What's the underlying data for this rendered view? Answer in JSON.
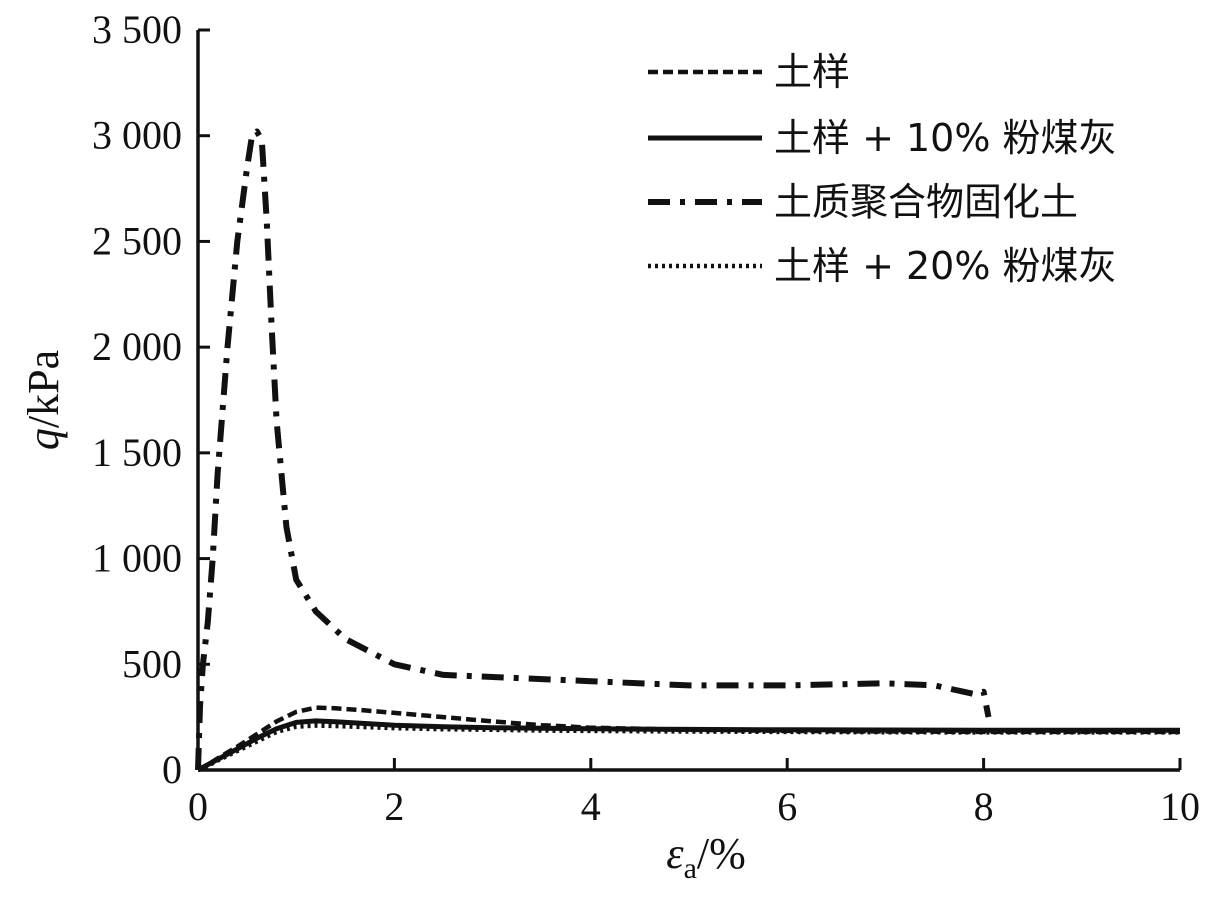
{
  "chart_data": {
    "type": "line",
    "xlabel_symbol": "ε",
    "xlabel_subscript": "a",
    "xlabel_unit": "/%",
    "ylabel_symbol": "q",
    "ylabel_unit": "/kPa",
    "xlim": [
      0,
      10
    ],
    "ylim": [
      0,
      3500
    ],
    "x_ticks": [
      {
        "value": 0,
        "label": "0"
      },
      {
        "value": 2,
        "label": "2"
      },
      {
        "value": 4,
        "label": "4"
      },
      {
        "value": 6,
        "label": "6"
      },
      {
        "value": 8,
        "label": "8"
      },
      {
        "value": 10,
        "label": "10"
      }
    ],
    "y_ticks": [
      {
        "value": 0,
        "label": "0"
      },
      {
        "value": 500,
        "label": "500"
      },
      {
        "value": 1000,
        "label": "1 000"
      },
      {
        "value": 1500,
        "label": "1 500"
      },
      {
        "value": 2000,
        "label": "2 000"
      },
      {
        "value": 2500,
        "label": "2 500"
      },
      {
        "value": 3000,
        "label": "3 000"
      },
      {
        "value": 3500,
        "label": "3 500"
      }
    ],
    "grid": false,
    "legend_position": "top-right",
    "series": [
      {
        "name": "土样",
        "style": "dashed",
        "color": "#111111",
        "x": [
          0,
          0.1,
          0.2,
          0.4,
          0.6,
          0.8,
          1.0,
          1.2,
          1.4,
          1.7,
          2.0,
          2.5,
          3.0,
          3.5,
          4.0,
          5.0,
          6.0,
          7.0,
          8.0,
          9.0,
          10.0
        ],
        "y": [
          0,
          25,
          55,
          110,
          170,
          230,
          275,
          295,
          292,
          282,
          270,
          250,
          230,
          212,
          200,
          190,
          185,
          182,
          180,
          180,
          180
        ]
      },
      {
        "name": "土样 + 10% 粉煤灰",
        "style": "solid",
        "color": "#111111",
        "x": [
          0,
          0.1,
          0.2,
          0.4,
          0.6,
          0.8,
          1.0,
          1.2,
          1.4,
          1.7,
          2.0,
          2.5,
          3.0,
          3.5,
          4.0,
          5.0,
          6.0,
          7.0,
          8.0,
          9.0,
          10.0
        ],
        "y": [
          0,
          25,
          50,
          100,
          150,
          195,
          225,
          232,
          228,
          220,
          212,
          205,
          200,
          197,
          195,
          192,
          190,
          189,
          188,
          188,
          188
        ]
      },
      {
        "name": "土质聚合物固化土",
        "style": "dashdot",
        "color": "#111111",
        "x": [
          0,
          0.02,
          0.05,
          0.1,
          0.15,
          0.2,
          0.3,
          0.4,
          0.5,
          0.55,
          0.6,
          0.65,
          0.7,
          0.75,
          0.8,
          0.9,
          1.0,
          1.2,
          1.5,
          2.0,
          2.5,
          3.0,
          3.5,
          4.0,
          5.0,
          6.0,
          7.0,
          7.5,
          7.8,
          7.9,
          8.0,
          8.05
        ],
        "y": [
          0,
          300,
          500,
          700,
          1000,
          1400,
          2000,
          2500,
          2850,
          3000,
          3020,
          2980,
          2600,
          2100,
          1650,
          1150,
          900,
          750,
          620,
          500,
          450,
          440,
          430,
          420,
          400,
          400,
          410,
          400,
          370,
          360,
          370,
          250
        ]
      },
      {
        "name": "土样 + 20% 粉煤灰",
        "style": "dotted",
        "color": "#111111",
        "x": [
          0,
          0.1,
          0.2,
          0.4,
          0.6,
          0.8,
          1.0,
          1.2,
          1.4,
          1.7,
          2.0,
          2.5,
          3.0,
          3.5,
          4.0,
          5.0,
          6.0,
          7.0,
          8.0,
          9.0,
          10.0
        ],
        "y": [
          0,
          20,
          45,
          90,
          135,
          180,
          205,
          210,
          208,
          203,
          198,
          193,
          190,
          187,
          185,
          182,
          180,
          179,
          178,
          178,
          178
        ]
      }
    ]
  }
}
